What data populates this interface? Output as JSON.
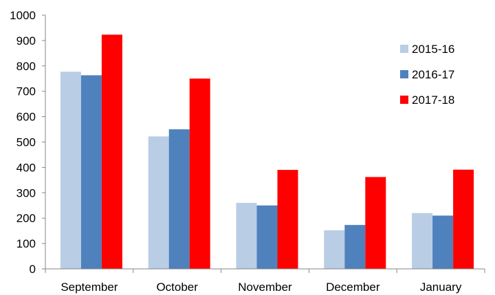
{
  "chart_data": {
    "type": "bar",
    "title": "",
    "xlabel": "",
    "ylabel": "",
    "categories": [
      "September",
      "October",
      "November",
      "December",
      "January"
    ],
    "series": [
      {
        "name": "2015-16",
        "color": "#b9cde5",
        "values": [
          777,
          522,
          260,
          152,
          220
        ]
      },
      {
        "name": "2016-17",
        "color": "#4f81bd",
        "values": [
          763,
          550,
          250,
          173,
          210
        ]
      },
      {
        "name": "2017-18",
        "color": "#ff0000",
        "values": [
          923,
          750,
          390,
          362,
          391
        ]
      }
    ],
    "ylim": [
      0,
      1000
    ],
    "yticks": [
      "0",
      "100",
      "200",
      "300",
      "400",
      "500",
      "600",
      "700",
      "800",
      "900",
      "1000"
    ],
    "grid": false,
    "legend_position": "top-right"
  }
}
